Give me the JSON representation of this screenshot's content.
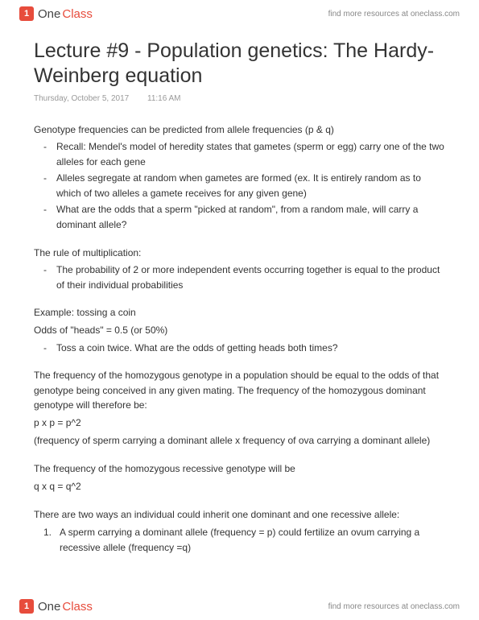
{
  "brand": {
    "logo_one": "One",
    "logo_class": "Class",
    "resources_text": "find more resources at oneclass.com"
  },
  "doc": {
    "title": "Lecture #9 - Population genetics: The Hardy-Weinberg equation",
    "date": "Thursday, October 5, 2017",
    "time": "11:16 AM"
  },
  "s1": {
    "heading": "Genotype frequencies can be predicted from allele frequencies (p & q)",
    "b1": "Recall: Mendel's model of heredity states that gametes (sperm or egg) carry one of the two alleles for each gene",
    "b2": "Alleles segregate at random when gametes are formed (ex. It is entirely random as to which of two alleles a gamete receives for any given gene)",
    "b3": "What are the odds that a sperm \"picked at random\", from a random male, will carry a dominant allele?"
  },
  "s2": {
    "heading": "The rule of multiplication:",
    "b1": "The probability of 2 or more independent events occurring together is equal to the product of their individual probabilities"
  },
  "s3": {
    "l1": "Example: tossing a coin",
    "l2": "Odds of \"heads\" = 0.5 (or 50%)",
    "b1": "Toss a coin twice. What are the odds of getting heads both times?"
  },
  "s4": {
    "p1": "The frequency of the homozygous genotype in a population should be equal to the odds of that genotype being conceived in any given mating. The frequency of the homozygous dominant genotype will therefore be:",
    "eq": "p x p = p^2",
    "p2": "(frequency of sperm carrying a dominant allele x frequency of ova carrying a dominant allele)"
  },
  "s5": {
    "p1": "The frequency of the homozygous recessive genotype will be",
    "eq": "q x q = q^2"
  },
  "s6": {
    "p1": "There are two ways an individual could inherit one dominant and one recessive allele:",
    "n1_num": "1.",
    "n1": "A sperm carrying a dominant allele (frequency = p) could fertilize an ovum carrying a recessive allele (frequency =q)"
  },
  "colors": {
    "text": "#333333",
    "meta": "#999999",
    "accent": "#e74c3c",
    "background": "#ffffff"
  },
  "typography": {
    "title_fontsize": 25,
    "body_fontsize": 12,
    "meta_fontsize": 10,
    "font_family": "Arial"
  }
}
